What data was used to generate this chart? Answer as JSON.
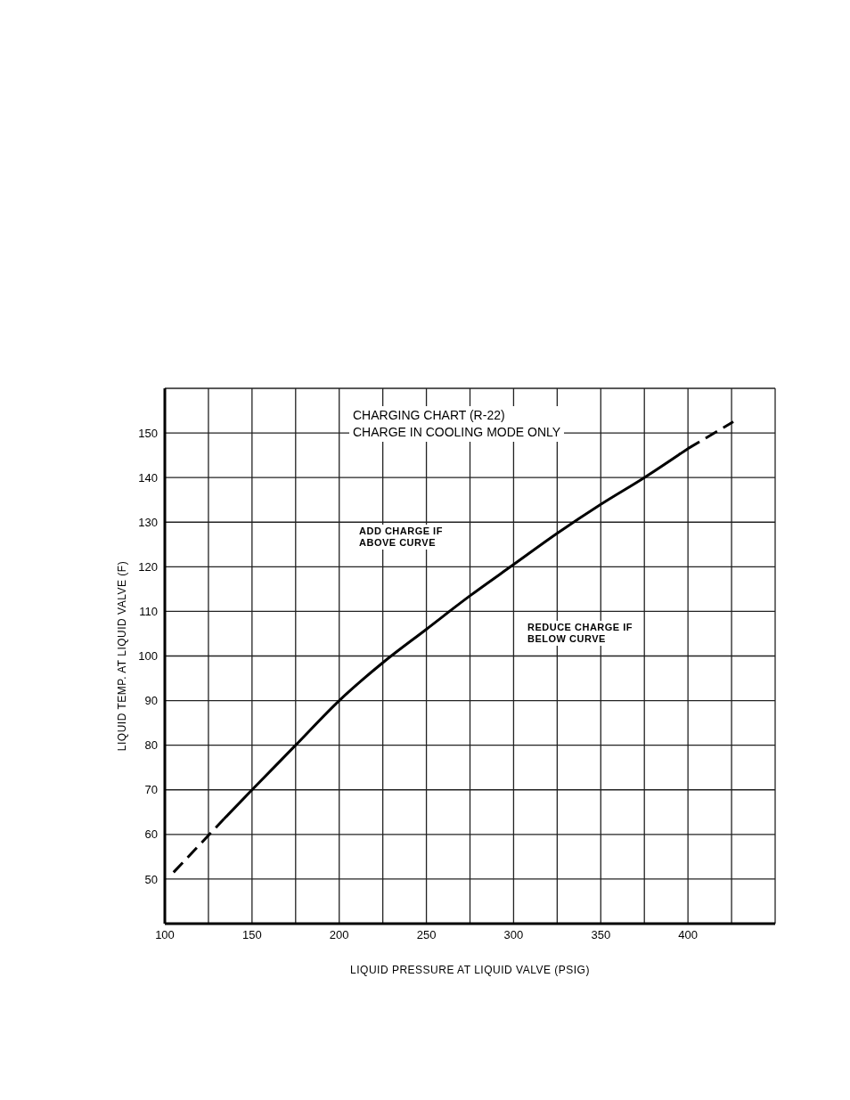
{
  "chart_data": {
    "type": "line",
    "title": "CHARGING CHART (R-22)",
    "subtitle": "CHARGE IN COOLING MODE ONLY",
    "xlabel": "LIQUID PRESSURE AT LIQUID VALVE (PSIG)",
    "ylabel": "LIQUID TEMP. AT LIQUID VALVE (F)",
    "annotations": [
      "ADD CHARGE IF ABOVE CURVE",
      "REDUCE CHARGE IF BELOW CURVE"
    ],
    "series": [
      {
        "color": "#000000",
        "line_style": "dashed",
        "x": [
          105,
          134
        ],
        "values": [
          51.5,
          63.5
        ]
      },
      {
        "color": "#000000",
        "line_style": "solid",
        "x": [
          134,
          150,
          175,
          200,
          225,
          250,
          275,
          300,
          325,
          350,
          375,
          400
        ],
        "values": [
          63.5,
          70,
          80,
          90,
          98.5,
          106,
          113.5,
          120.5,
          127.5,
          134,
          140,
          146.5
        ]
      },
      {
        "color": "#000000",
        "line_style": "dashed",
        "x": [
          400,
          426
        ],
        "values": [
          146.5,
          152.5
        ]
      }
    ],
    "xlim": [
      100,
      450
    ],
    "xticks": [
      100,
      {
        "value": 125,
        "label": null
      },
      150,
      {
        "value": 175,
        "label": null
      },
      200,
      {
        "value": 225,
        "label": null
      },
      250,
      {
        "value": 275,
        "label": null
      },
      300,
      {
        "value": 325,
        "label": null
      },
      350,
      {
        "value": 375,
        "label": null
      },
      400,
      {
        "value": 425,
        "label": null
      }
    ],
    "ylim": [
      40,
      160
    ],
    "yticks": [
      50,
      60,
      70,
      80,
      90,
      100,
      110,
      120,
      130,
      140,
      150
    ],
    "grid": true,
    "marker": "none",
    "legend": false
  }
}
